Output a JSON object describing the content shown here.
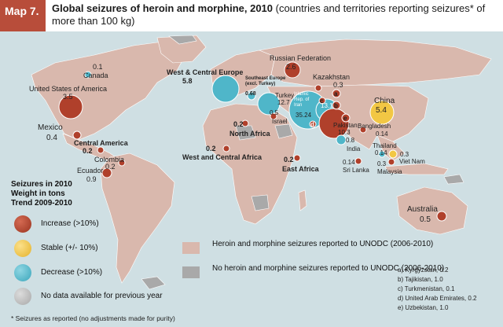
{
  "header": {
    "map_tag": "Map 7.",
    "title_bold": "Global seizures of heroin and morphine, 2010",
    "title_rest": " (countries and territories reporting seizures* of more than 100 kg)"
  },
  "colors": {
    "header_tag": "#b84d3a",
    "ocean": "#cfdfe3",
    "land_reported": "#d9b8ad",
    "land_not_reported": "#a9a9a9",
    "increase": "#b0402b",
    "stable": "#f2c744",
    "decrease": "#4fb6c9",
    "no_data": "#bdbdbd"
  },
  "map_labels": {
    "canada": "Canada",
    "canada_value": "0.1",
    "usa": "United States of America",
    "usa_value": "3.5",
    "mexico": "Mexico",
    "mexico_value": "0.4",
    "central_america": "Central America",
    "central_america_value": "0.2",
    "colombia": "Colombia",
    "colombia_value": "0.2",
    "ecuador": "Ecuador",
    "ecuador_value": "0.9",
    "west_central_europe": "West & Central Europe",
    "west_central_europe_value": "5.8",
    "southeast_europe": "Southeast Europe (excl. Turkey)",
    "southeast_europe_value": "0.68",
    "turkey": "Turkey",
    "turkey_value": "12.7",
    "israel": "Israel",
    "israel_value": "0.5",
    "russia": "Russian Federation",
    "russia_value": "2.6",
    "kazakhstan": "Kazakhstan",
    "kazakhstan_value": "0.3",
    "iran": "Islamic Rep. of Iran",
    "iran_value": "35.24",
    "afghanistan_value": "13.1",
    "pakistan": "Pakistan",
    "pakistan_value": "10.3",
    "china": "China",
    "china_value": "5.4",
    "bangladesh": "Bangladesh",
    "bangladesh_value": "0.14",
    "india": "India",
    "india_value": "0.8",
    "thailand": "Thailand",
    "thailand_value": "0.14",
    "viet_nam": "Viet Nam",
    "viet_nam_value": "0.3",
    "malaysia": "Malaysia",
    "malaysia_value": "0.3",
    "sri_lanka": "Sri Lanka",
    "sri_lanka_value": "0.14",
    "north_africa": "North Africa",
    "north_africa_value": "0.2",
    "west_central_africa": "West and Central Africa",
    "west_central_africa_value": "0.2",
    "east_africa": "East Africa",
    "east_africa_value": "0.2",
    "australia": "Australia",
    "australia_value": "0.5",
    "marker_a": "a",
    "marker_b": "b",
    "marker_c": "c",
    "marker_d": "d",
    "marker_e": "e"
  },
  "legend": {
    "title_line1": "Seizures in 2010",
    "title_line2": "Weight in tons",
    "title_line3": "Trend 2009-2010",
    "increase": "Increase (>10%)",
    "stable": "Stable (+/- 10%)",
    "decrease": "Decrease (>10%)",
    "no_data": "No data available for previous year",
    "reported": "Heroin and morphine seizures reported to UNODC (2006-2010)",
    "not_reported": "No heroin and morphine seizures reported to UNODC (2006-2010)"
  },
  "notes": {
    "a": "a) Kyrgyzstan, 0.2",
    "b": "b) Tajikistan, 1.0",
    "c": "c) Turkmenistan, 0.1",
    "d": "d) United Arab Emirates, 0.2",
    "e": "e) Uzbekistan, 1.0"
  },
  "footnote": "* Seizures as reported (no adjustments made for purity)"
}
